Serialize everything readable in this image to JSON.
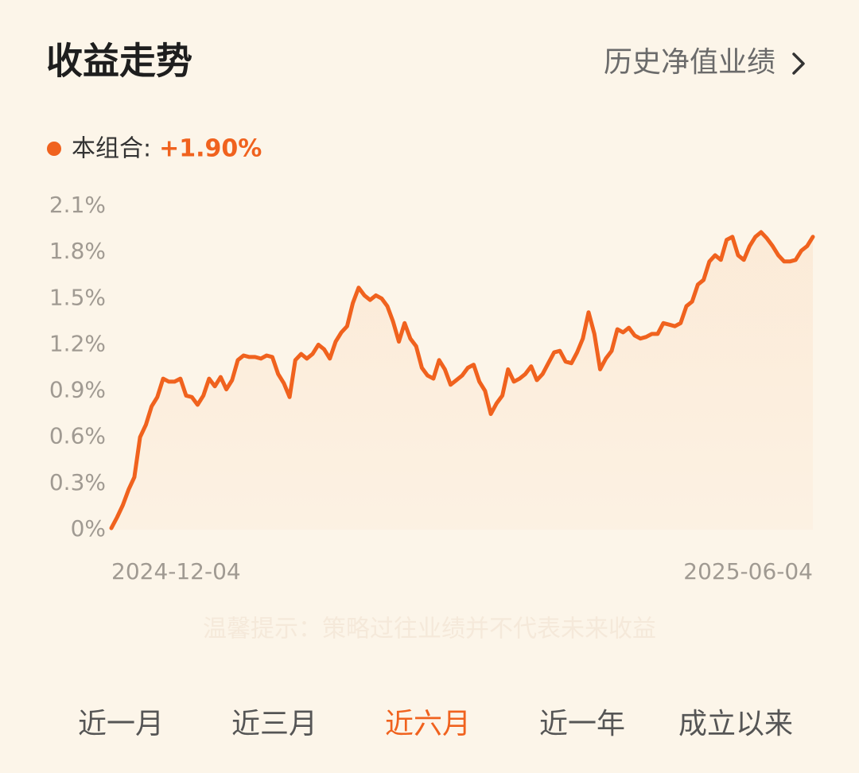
{
  "header": {
    "title": "收益走势",
    "link": "历史净值业绩"
  },
  "chart_data": {
    "type": "line",
    "categories": [
      "2024-12-04",
      null,
      null,
      null,
      null,
      null,
      null,
      null,
      null,
      null,
      null,
      null,
      null,
      null,
      null,
      null,
      null,
      null,
      null,
      null,
      null,
      null,
      null,
      null,
      null,
      null,
      null,
      null,
      null,
      null,
      null,
      null,
      null,
      null,
      null,
      null,
      null,
      null,
      null,
      null,
      null,
      null,
      null,
      null,
      null,
      null,
      null,
      null,
      null,
      null,
      null,
      null,
      null,
      null,
      null,
      null,
      null,
      null,
      null,
      null,
      null,
      null,
      null,
      null,
      null,
      null,
      null,
      null,
      null,
      null,
      null,
      null,
      null,
      null,
      null,
      null,
      null,
      null,
      null,
      null,
      null,
      null,
      null,
      null,
      null,
      null,
      null,
      null,
      null,
      null,
      null,
      null,
      null,
      null,
      null,
      null,
      null,
      null,
      null,
      null,
      null,
      null,
      null,
      null,
      null,
      null,
      null,
      null,
      null,
      null,
      null,
      null,
      null,
      null,
      null,
      null,
      null,
      null,
      null,
      null,
      null,
      null,
      "2025-06-04"
    ],
    "series": [
      {
        "name": "本组合:",
        "color": "#f0621e",
        "latest_label": "+1.90%",
        "values": [
          0.01,
          0.08,
          0.16,
          0.26,
          0.34,
          0.6,
          0.68,
          0.8,
          0.86,
          0.98,
          0.96,
          0.96,
          0.98,
          0.87,
          0.86,
          0.81,
          0.87,
          0.98,
          0.93,
          0.99,
          0.91,
          0.97,
          1.1,
          1.13,
          1.12,
          1.12,
          1.11,
          1.13,
          1.12,
          1.01,
          0.95,
          0.86,
          1.1,
          1.14,
          1.11,
          1.14,
          1.2,
          1.17,
          1.11,
          1.22,
          1.28,
          1.32,
          1.47,
          1.57,
          1.52,
          1.49,
          1.52,
          1.5,
          1.45,
          1.35,
          1.22,
          1.34,
          1.24,
          1.19,
          1.05,
          1.0,
          0.98,
          1.1,
          1.04,
          0.94,
          0.97,
          1.0,
          1.05,
          1.07,
          0.96,
          0.9,
          0.75,
          0.82,
          0.87,
          1.04,
          0.96,
          0.98,
          1.01,
          1.06,
          0.97,
          1.01,
          1.08,
          1.15,
          1.16,
          1.09,
          1.08,
          1.15,
          1.24,
          1.41,
          1.27,
          1.04,
          1.11,
          1.16,
          1.3,
          1.28,
          1.31,
          1.26,
          1.24,
          1.25,
          1.27,
          1.27,
          1.34,
          1.33,
          1.32,
          1.34,
          1.45,
          1.48,
          1.59,
          1.62,
          1.74,
          1.78,
          1.75,
          1.88,
          1.9,
          1.78,
          1.75,
          1.84,
          1.9,
          1.93,
          1.89,
          1.84,
          1.78,
          1.74,
          1.74,
          1.75,
          1.81,
          1.84,
          1.9
        ]
      }
    ],
    "ylim": [
      0,
      2.1
    ],
    "yticks": [
      {
        "value": 0,
        "label": "0%"
      },
      {
        "value": 0.3,
        "label": "0.3%"
      },
      {
        "value": 0.6,
        "label": "0.6%"
      },
      {
        "value": 0.9,
        "label": "0.9%"
      },
      {
        "value": 1.2,
        "label": "1.2%"
      },
      {
        "value": 1.5,
        "label": "1.5%"
      },
      {
        "value": 1.8,
        "label": "1.8%"
      },
      {
        "value": 2.1,
        "label": "2.1%"
      }
    ],
    "grid": false
  },
  "notice": "温馨提示：策略过往业绩并不代表未来收益",
  "tabs": {
    "items": [
      "近一月",
      "近三月",
      "近六月",
      "近一年",
      "成立以来"
    ],
    "active": 2
  }
}
